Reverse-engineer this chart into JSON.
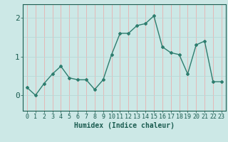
{
  "x": [
    0,
    1,
    2,
    3,
    4,
    5,
    6,
    7,
    8,
    9,
    10,
    11,
    12,
    13,
    14,
    15,
    16,
    17,
    18,
    19,
    20,
    21,
    22,
    23
  ],
  "y": [
    0.2,
    0.0,
    0.3,
    0.55,
    0.75,
    0.45,
    0.4,
    0.4,
    0.15,
    0.4,
    1.05,
    1.6,
    1.6,
    1.8,
    1.85,
    2.05,
    1.25,
    1.1,
    1.05,
    0.55,
    1.3,
    1.4,
    0.35,
    0.35
  ],
  "line_color": "#2e7d6e",
  "marker": "D",
  "marker_size": 2,
  "line_width": 1.0,
  "bg_color": "#cce8e6",
  "grid_color_vertical": "#e8b0b0",
  "grid_color_horizontal": "#b8d8d6",
  "xlabel": "Humidex (Indice chaleur)",
  "xlabel_fontsize": 7,
  "xlabel_color": "#1a5c50",
  "tick_color": "#1a5c50",
  "tick_fontsize": 6,
  "ytick_labels": [
    "0",
    "1",
    "2"
  ],
  "ytick_values": [
    0,
    1,
    2
  ],
  "xlim": [
    -0.5,
    23.5
  ],
  "ylim": [
    -0.4,
    2.35
  ]
}
